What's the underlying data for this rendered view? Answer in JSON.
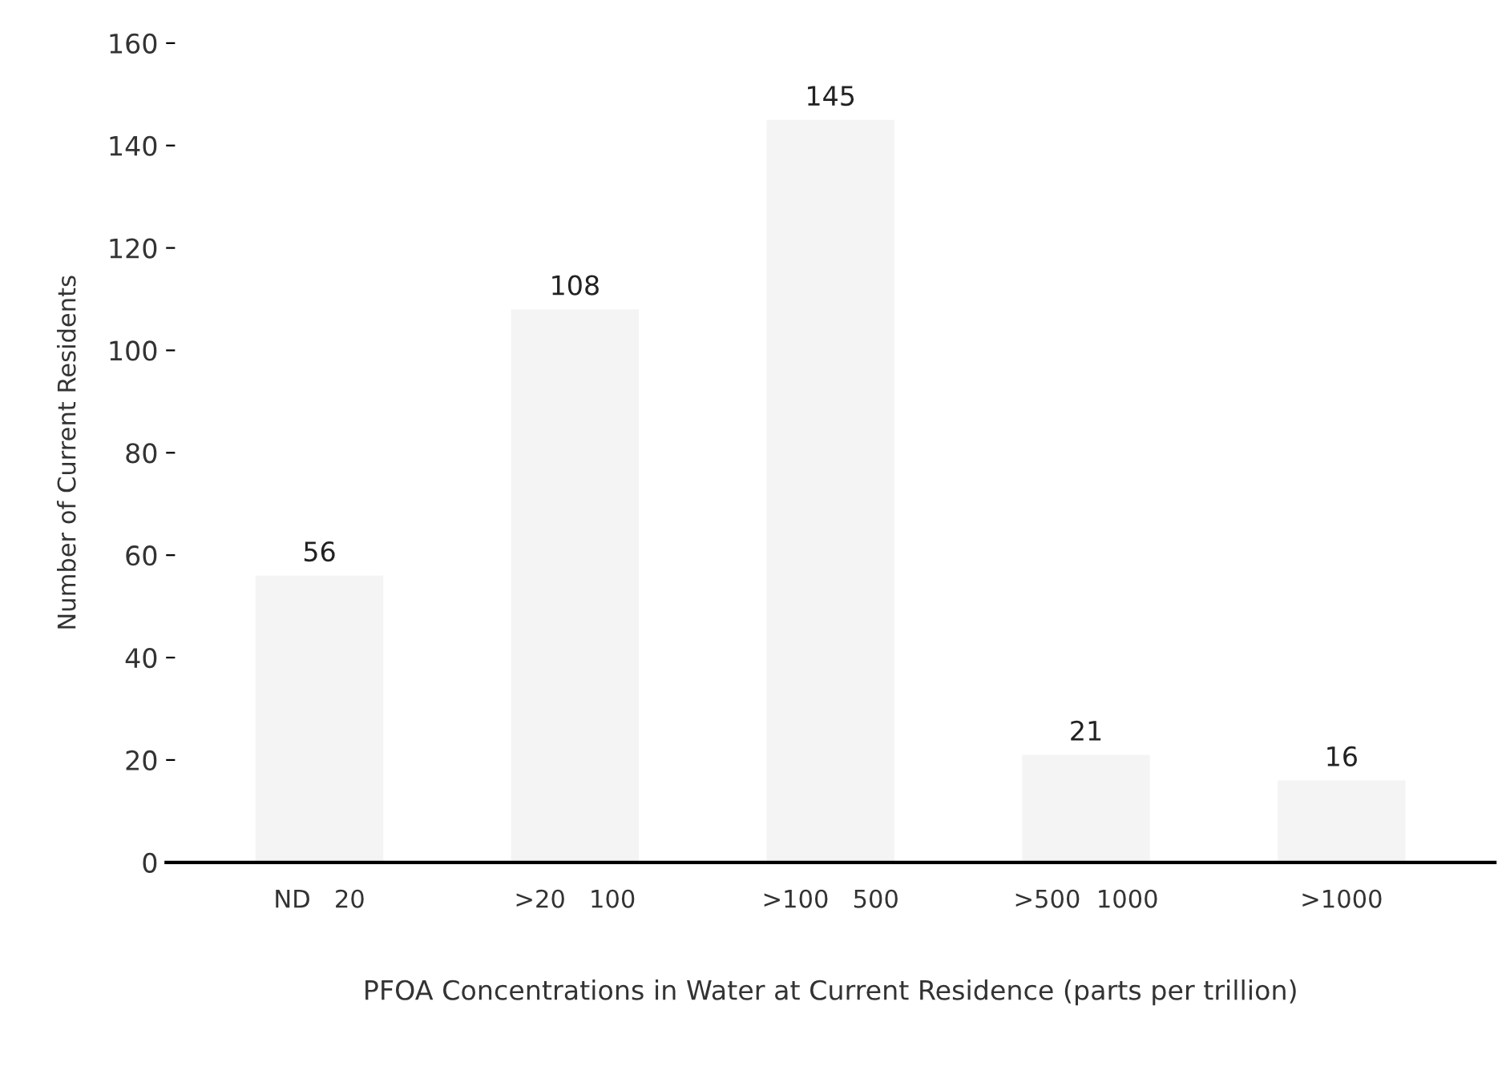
{
  "chart_data": {
    "type": "bar",
    "xlabel": "PFOA Concentrations in Water at Current Residence (parts per trillion)",
    "ylabel": "Number of Current Residents",
    "categories": [
      "ND   20",
      ">20   100",
      ">100   500",
      ">500  1000",
      ">1000"
    ],
    "values": [
      56,
      108,
      145,
      21,
      16
    ],
    "color": "#f4f4f4",
    "ylim": [
      0,
      160
    ],
    "yticks": [
      0,
      20,
      40,
      60,
      80,
      100,
      120,
      140,
      160
    ],
    "data_labels": true,
    "grid": false,
    "legend": false
  }
}
